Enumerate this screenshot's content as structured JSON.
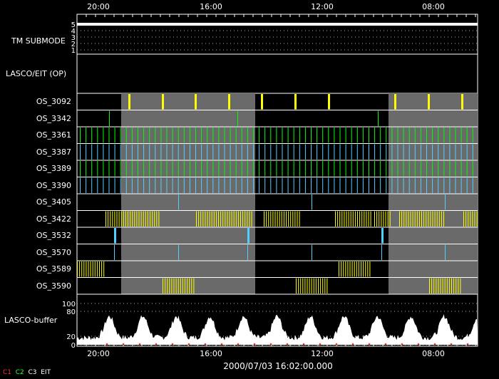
{
  "chart_data": {
    "type": "timeline",
    "title": "",
    "time_ticks": [
      "20:00",
      "16:00",
      "12:00",
      "08:00"
    ],
    "date_label": "2000/07/03 16:02:00.000",
    "tm_submode": {
      "label": "TM SUBMODE",
      "ticks": [
        "5",
        "4",
        "3",
        "2",
        "1"
      ]
    },
    "lasco_eit_label": "LASCO/EIT (OP)",
    "buffer": {
      "label": "LASCO-buffer",
      "ticks": [
        "100",
        "80",
        "20",
        "0"
      ]
    },
    "rows": [
      {
        "name": "OS_3092",
        "color": "#ffff00",
        "pattern": "sparse"
      },
      {
        "name": "OS_3342",
        "color": "#00ff00",
        "pattern": "rare"
      },
      {
        "name": "OS_3361",
        "color": "#00ff00",
        "pattern": "dense"
      },
      {
        "name": "OS_3387",
        "color": "#4fd0ff",
        "pattern": "dense"
      },
      {
        "name": "OS_3389",
        "color": "#00ff00",
        "pattern": "dense"
      },
      {
        "name": "OS_3390",
        "color": "#4fd0ff",
        "pattern": "dense"
      },
      {
        "name": "OS_3405",
        "color": "#4fd0ff",
        "pattern": "rare"
      },
      {
        "name": "OS_3422",
        "color": "#ffff00",
        "pattern": "bursts"
      },
      {
        "name": "OS_3532",
        "color": "#4fd0ff",
        "pattern": "rare"
      },
      {
        "name": "OS_3570",
        "color": "#4fd0ff",
        "pattern": "rare"
      },
      {
        "name": "OS_3589",
        "color": "#ffff00",
        "pattern": "bursts"
      },
      {
        "name": "OS_3590",
        "color": "#ffff00",
        "pattern": "bursts"
      }
    ],
    "legend": [
      {
        "label": "C1",
        "color": "#ff3030"
      },
      {
        "label": "C2",
        "color": "#30ff30"
      },
      {
        "label": "C3",
        "color": "#ffffff"
      },
      {
        "label": "EIT",
        "color": "#ffffff"
      }
    ]
  }
}
